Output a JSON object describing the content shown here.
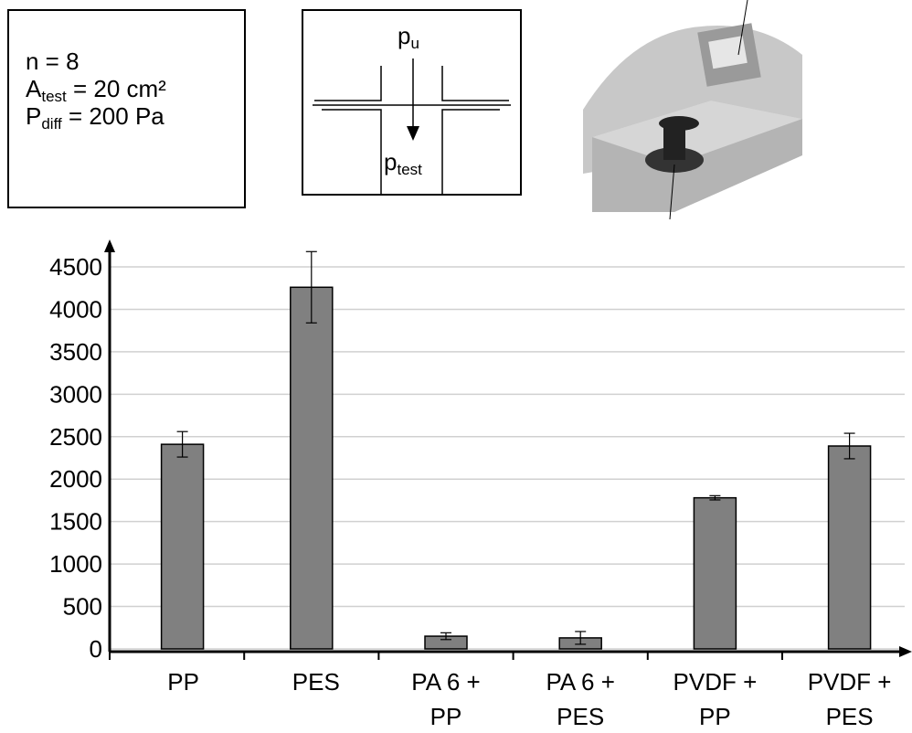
{
  "info_box": {
    "lines": [
      {
        "main": "n = 8"
      },
      {
        "main": "A",
        "sub": "test",
        "rest": " = 20 cm²"
      },
      {
        "main": "P",
        "sub": "diff",
        "rest": " = 200 Pa"
      }
    ]
  },
  "diagram": {
    "top": {
      "main": "p",
      "sub": "u"
    },
    "bottom": {
      "main": "p",
      "sub": "test"
    }
  },
  "chart_data": {
    "type": "bar",
    "categories": [
      "PP",
      "PES",
      "PA 6 + PP",
      "PA 6 + PES",
      "PVDF + PP",
      "PVDF + PES"
    ],
    "values": [
      2410,
      4260,
      150,
      130,
      1780,
      2390
    ],
    "errors": [
      150,
      420,
      40,
      75,
      25,
      150
    ],
    "color": "#808080",
    "ylim": [
      0,
      4500
    ],
    "yticks": [
      0,
      500,
      1000,
      1500,
      2000,
      2500,
      3000,
      3500,
      4000,
      4500
    ],
    "grid": true
  }
}
